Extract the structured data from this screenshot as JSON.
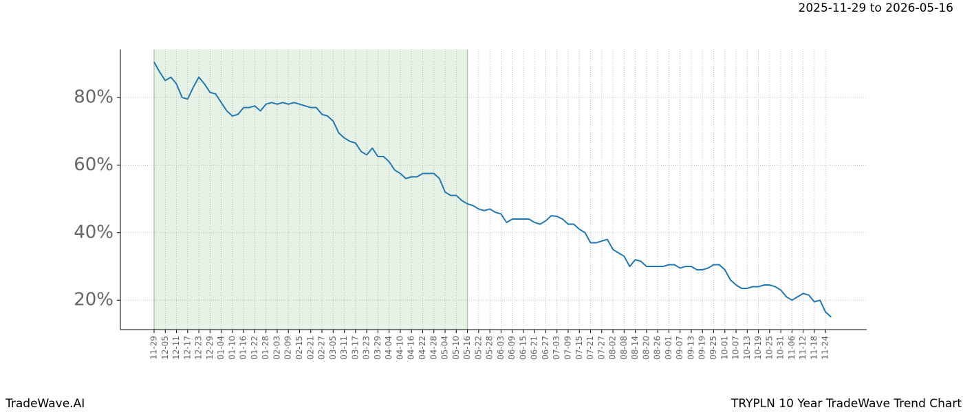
{
  "chart_data": {
    "type": "line",
    "title": "TRYPLN 10 Year TradeWave Trend Chart",
    "subtitle": "2025-11-29 to 2026-05-16",
    "watermark": "TradeWave.AI",
    "categories": [
      "11-29",
      null,
      "12-05",
      null,
      "12-11",
      null,
      "12-17",
      null,
      "12-23",
      null,
      "12-29",
      null,
      "01-04",
      null,
      "01-10",
      null,
      "01-16",
      null,
      "01-22",
      null,
      "01-28",
      null,
      "02-03",
      null,
      "02-09",
      null,
      "02-15",
      null,
      "02-21",
      null,
      "02-27",
      null,
      "03-05",
      null,
      "03-11",
      null,
      "03-17",
      null,
      "03-23",
      null,
      "03-29",
      null,
      "04-04",
      null,
      "04-10",
      null,
      "04-16",
      null,
      "04-22",
      null,
      "04-28",
      null,
      "05-04",
      null,
      "05-10",
      null,
      "05-16",
      null,
      "05-22",
      null,
      "05-28",
      null,
      "06-03",
      null,
      "06-09",
      null,
      "06-15",
      null,
      "06-21",
      null,
      "06-27",
      null,
      "07-03",
      null,
      "07-09",
      null,
      "07-15",
      null,
      "07-21",
      null,
      "07-27",
      null,
      "08-02",
      null,
      "08-08",
      null,
      "08-14",
      null,
      "08-20",
      null,
      "08-26",
      null,
      "09-01",
      null,
      "09-07",
      null,
      "09-13",
      null,
      "09-19",
      null,
      "09-25",
      null,
      "10-01",
      null,
      "10-07",
      null,
      "10-13",
      null,
      "10-19",
      null,
      "10-25",
      null,
      "10-31",
      null,
      "11-06",
      null,
      "11-12",
      null,
      "11-18",
      null,
      "11-24",
      null
    ],
    "values": [
      90.5,
      87.5,
      85,
      86,
      84,
      80,
      79.5,
      83,
      86,
      84,
      81.5,
      81,
      78.5,
      76,
      74.5,
      75,
      77,
      77,
      77.5,
      76,
      78,
      78.5,
      78,
      78.5,
      78,
      78.5,
      78,
      77.5,
      77,
      77,
      75,
      74.5,
      73,
      69.5,
      68,
      67,
      66.5,
      64,
      63,
      65,
      62.5,
      62.5,
      61,
      58.5,
      57.5,
      56,
      56.5,
      56.5,
      57.5,
      57.5,
      57.5,
      56,
      52,
      51,
      51,
      49.5,
      48.5,
      48,
      47,
      46.5,
      47,
      46,
      45.5,
      43,
      44,
      44,
      44,
      44,
      43,
      42.5,
      43.5,
      45,
      44.8,
      44,
      42.5,
      42.5,
      41,
      40,
      37,
      37,
      37.5,
      38,
      35,
      34,
      33,
      30,
      32,
      31.5,
      30,
      30,
      30,
      30,
      30.5,
      30.5,
      29.5,
      30,
      30,
      29,
      29,
      29.5,
      30.5,
      30.5,
      29,
      26,
      24.5,
      23.5,
      23.5,
      24,
      24,
      24.5,
      24.5,
      24,
      23,
      21,
      20,
      21,
      22,
      21.5,
      19.5,
      20,
      16.5,
      15
    ],
    "color": "#1f77b4",
    "highlight": [
      "11-29",
      "05-16"
    ],
    "highlight_color": "#e6f2e6",
    "ylim": [
      11.3,
      94.2
    ],
    "yticks": [
      {
        "value": 20,
        "label": "20%"
      },
      {
        "value": 40,
        "label": "40%"
      },
      {
        "value": 60,
        "label": "60%"
      },
      {
        "value": 80,
        "label": "80%"
      }
    ],
    "grid": true
  }
}
